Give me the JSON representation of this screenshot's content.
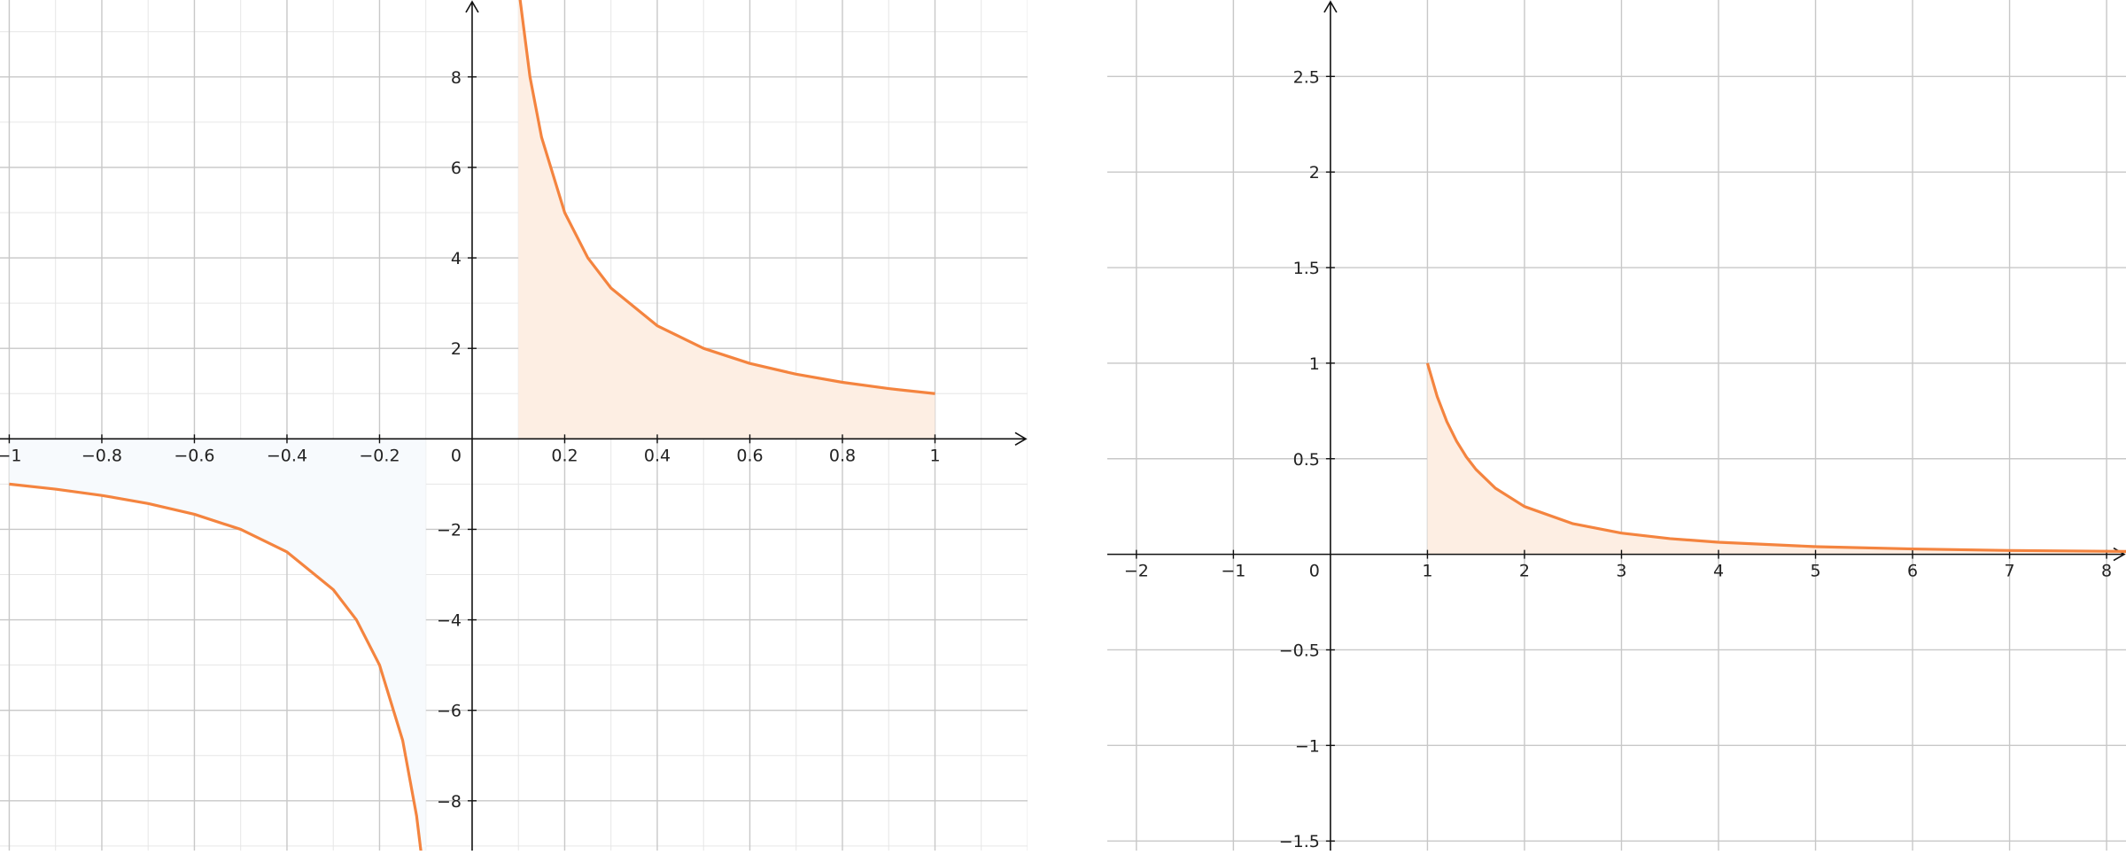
{
  "chart_data": [
    {
      "type": "line",
      "title": "",
      "xlabel": "",
      "ylabel": "",
      "xlim": [
        -1.02,
        1.2
      ],
      "ylim": [
        -9.1,
        9.7
      ],
      "grid": true,
      "x_ticks": [
        -1,
        -0.8,
        -0.6,
        -0.4,
        -0.2,
        0.2,
        0.4,
        0.6,
        0.8,
        1
      ],
      "x_tick_labels": [
        "−1",
        "−0.8",
        "−0.6",
        "−0.4",
        "−0.2",
        "0.2",
        "0.4",
        "0.6",
        "0.8",
        "1"
      ],
      "y_ticks": [
        -8,
        -6,
        -4,
        -2,
        2,
        4,
        6,
        8
      ],
      "y_tick_labels": [
        "−8",
        "−6",
        "−4",
        "−2",
        "2",
        "4",
        "6",
        "8"
      ],
      "origin_label": "0",
      "series": [
        {
          "x": [
            0.1,
            0.125,
            0.15,
            0.2,
            0.25,
            0.3,
            0.4,
            0.5,
            0.6,
            0.7,
            0.8,
            0.9,
            1.0
          ],
          "y": [
            10,
            8,
            6.667,
            5,
            4,
            3.333,
            2.5,
            2,
            1.667,
            1.429,
            1.25,
            1.111,
            1
          ],
          "shaded": true,
          "color": "#f4843f",
          "fill": "#fdeee3"
        },
        {
          "x": [
            -1.0,
            -0.9,
            -0.8,
            -0.7,
            -0.6,
            -0.5,
            -0.4,
            -0.3,
            -0.25,
            -0.2,
            -0.15,
            -0.12,
            -0.1
          ],
          "y": [
            -1,
            -1.111,
            -1.25,
            -1.429,
            -1.667,
            -2,
            -2.5,
            -3.333,
            -4,
            -5,
            -6.667,
            -8.333,
            -10
          ],
          "shaded": true,
          "color": "#f4843f",
          "fill": "#f7fafd"
        }
      ]
    },
    {
      "type": "line",
      "title": "",
      "xlabel": "",
      "ylabel": "",
      "xlim": [
        -2.3,
        8.2
      ],
      "ylim": [
        -1.55,
        2.9
      ],
      "grid": true,
      "x_ticks": [
        -2,
        -1,
        1,
        2,
        3,
        4,
        5,
        6,
        7,
        8
      ],
      "x_tick_labels": [
        "−2",
        "−1",
        "1",
        "2",
        "3",
        "4",
        "5",
        "6",
        "7",
        "8"
      ],
      "y_ticks": [
        -1.5,
        -1,
        -0.5,
        0.5,
        1,
        1.5,
        2,
        2.5
      ],
      "y_tick_labels": [
        "−1.5",
        "−1",
        "−0.5",
        "0.5",
        "1",
        "1.5",
        "2",
        "2.5"
      ],
      "origin_label": "0",
      "series": [
        {
          "x": [
            1,
            1.1,
            1.2,
            1.3,
            1.4,
            1.5,
            1.7,
            2,
            2.5,
            3,
            3.5,
            4,
            5,
            6,
            7,
            8,
            8.2
          ],
          "y": [
            1,
            0.826,
            0.694,
            0.592,
            0.51,
            0.444,
            0.346,
            0.25,
            0.16,
            0.111,
            0.082,
            0.063,
            0.04,
            0.028,
            0.02,
            0.016,
            0.015
          ],
          "shaded": true,
          "color": "#f4843f",
          "fill": "#fdeee3"
        }
      ]
    }
  ]
}
